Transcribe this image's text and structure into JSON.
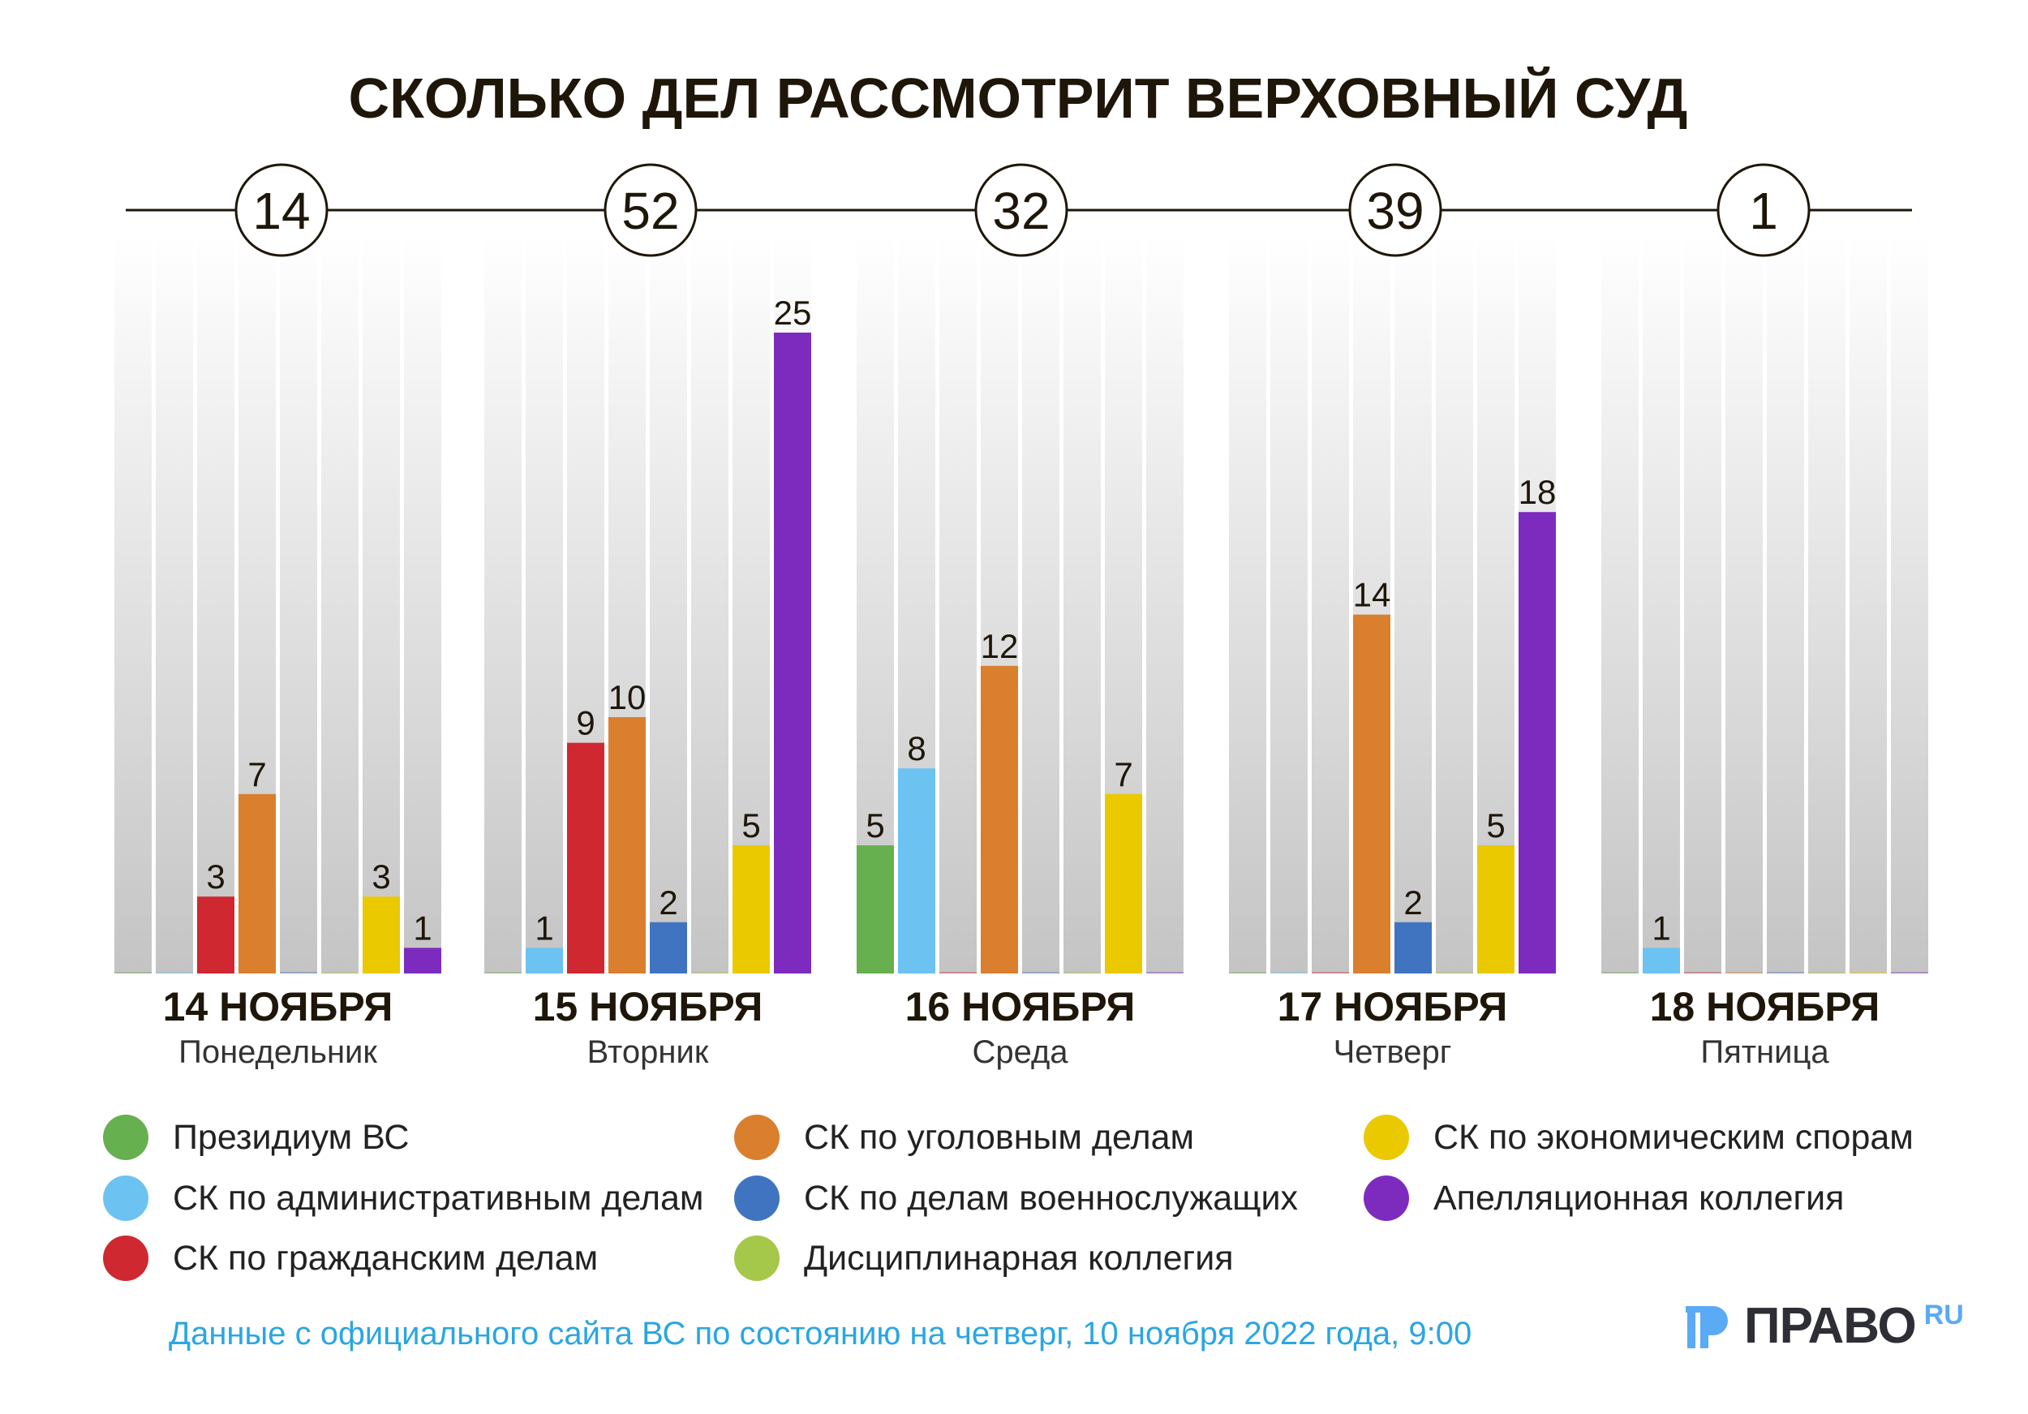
{
  "chart_data": {
    "type": "bar",
    "title": "СКОЛЬКО ДЕЛ РАССМОТРИТ ВЕРХОВНЫЙ СУД",
    "groups": [
      {
        "date": "14 НОЯБРЯ",
        "weekday": "Понедельник",
        "total": "14",
        "values": [
          0,
          0,
          3,
          7,
          0,
          0,
          3,
          1
        ]
      },
      {
        "date": "15 НОЯБРЯ",
        "weekday": "Вторник",
        "total": "52",
        "values": [
          0,
          1,
          9,
          10,
          2,
          0,
          5,
          25
        ]
      },
      {
        "date": "16 НОЯБРЯ",
        "weekday": "Среда",
        "total": "32",
        "values": [
          5,
          8,
          0,
          12,
          0,
          0,
          7,
          0
        ]
      },
      {
        "date": "17 НОЯБРЯ",
        "weekday": "Четверг",
        "total": "39",
        "values": [
          0,
          0,
          0,
          14,
          2,
          0,
          5,
          18
        ]
      },
      {
        "date": "18 НОЯБРЯ",
        "weekday": "Пятница",
        "total": "1",
        "values": [
          0,
          1,
          0,
          0,
          0,
          0,
          0,
          0
        ]
      }
    ],
    "series": [
      {
        "name": "Президиум ВС",
        "color": "#67b04f"
      },
      {
        "name": "СК по административным делам",
        "color": "#6cc2f1"
      },
      {
        "name": "СК по гражданским делам",
        "color": "#cf2830"
      },
      {
        "name": "СК по уголовным делам",
        "color": "#d97f2e"
      },
      {
        "name": "СК по делам военнослужащих",
        "color": "#4074c1"
      },
      {
        "name": "Дисциплинарная коллегия",
        "color": "#a5c74a"
      },
      {
        "name": "СК по экономическим спорам",
        "color": "#eac900"
      },
      {
        "name": "Апелляционная коллегия",
        "color": "#7d2bbf"
      }
    ],
    "ylim": [
      0,
      28
    ],
    "legend_position": "bottom",
    "grid": false
  },
  "footer": {
    "source": "Данные с официального сайта ВС по состоянию на четверг, 10 ноября 2022 года, 9:00",
    "logo_text": "ПРАВО",
    "logo_suffix": "RU"
  }
}
